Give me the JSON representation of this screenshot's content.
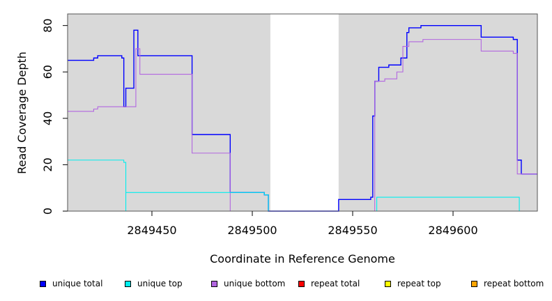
{
  "chart_data": {
    "type": "line",
    "title": "",
    "xlabel": "Coordinate in Reference Genome",
    "ylabel": "Read Coverage Depth",
    "xlim": [
      2849408,
      2849642
    ],
    "ylim": [
      0,
      85
    ],
    "x_ticks": [
      2849450,
      2849500,
      2849550,
      2849600
    ],
    "y_ticks": [
      0,
      20,
      40,
      60,
      80
    ],
    "shaded_regions": [
      [
        2849408,
        2849509
      ],
      [
        2849543,
        2849642
      ]
    ],
    "legend_placement": "bottom",
    "series": [
      {
        "name": "unique total",
        "color": "#0000ff",
        "points": [
          [
            2849408,
            65
          ],
          [
            2849421,
            65
          ],
          [
            2849421,
            66
          ],
          [
            2849423,
            66
          ],
          [
            2849423,
            67
          ],
          [
            2849435,
            67
          ],
          [
            2849435,
            66
          ],
          [
            2849436,
            66
          ],
          [
            2849436,
            45
          ],
          [
            2849437,
            45
          ],
          [
            2849437,
            53
          ],
          [
            2849441,
            53
          ],
          [
            2849441,
            78
          ],
          [
            2849443,
            78
          ],
          [
            2849443,
            67
          ],
          [
            2849470,
            67
          ],
          [
            2849470,
            33
          ],
          [
            2849489,
            33
          ],
          [
            2849489,
            8
          ],
          [
            2849506,
            8
          ],
          [
            2849506,
            7
          ],
          [
            2849508,
            7
          ],
          [
            2849508,
            0
          ],
          [
            2849543,
            0
          ],
          [
            2849543,
            5
          ],
          [
            2849559,
            5
          ],
          [
            2849559,
            6
          ],
          [
            2849560,
            6
          ],
          [
            2849560,
            41
          ],
          [
            2849561,
            41
          ],
          [
            2849561,
            56
          ],
          [
            2849563,
            56
          ],
          [
            2849563,
            62
          ],
          [
            2849568,
            62
          ],
          [
            2849568,
            63
          ],
          [
            2849574,
            63
          ],
          [
            2849574,
            66
          ],
          [
            2849577,
            66
          ],
          [
            2849577,
            77
          ],
          [
            2849578,
            77
          ],
          [
            2849578,
            79
          ],
          [
            2849584,
            79
          ],
          [
            2849584,
            80
          ],
          [
            2849614,
            80
          ],
          [
            2849614,
            75
          ],
          [
            2849630,
            75
          ],
          [
            2849630,
            74
          ],
          [
            2849632,
            74
          ],
          [
            2849632,
            22
          ],
          [
            2849634,
            22
          ],
          [
            2849634,
            16
          ],
          [
            2849642,
            16
          ]
        ]
      },
      {
        "name": "unique top",
        "color": "#00eeee",
        "points": [
          [
            2849408,
            22
          ],
          [
            2849436,
            22
          ],
          [
            2849436,
            21
          ],
          [
            2849437,
            21
          ],
          [
            2849437,
            0
          ],
          [
            2849437,
            8
          ],
          [
            2849506,
            8
          ],
          [
            2849506,
            7
          ],
          [
            2849508,
            7
          ],
          [
            2849508,
            0
          ],
          [
            2849562,
            0
          ],
          [
            2849562,
            6
          ],
          [
            2849633,
            6
          ],
          [
            2849633,
            0
          ],
          [
            2849642,
            0
          ]
        ]
      },
      {
        "name": "unique bottom",
        "color": "#b266e0",
        "points": [
          [
            2849408,
            43
          ],
          [
            2849421,
            43
          ],
          [
            2849421,
            44
          ],
          [
            2849423,
            44
          ],
          [
            2849423,
            45
          ],
          [
            2849442,
            45
          ],
          [
            2849442,
            70
          ],
          [
            2849444,
            70
          ],
          [
            2849444,
            59
          ],
          [
            2849470,
            59
          ],
          [
            2849470,
            25
          ],
          [
            2849489,
            25
          ],
          [
            2849489,
            0
          ],
          [
            2849561,
            0
          ],
          [
            2849561,
            56
          ],
          [
            2849566,
            56
          ],
          [
            2849566,
            57
          ],
          [
            2849572,
            57
          ],
          [
            2849572,
            60
          ],
          [
            2849575,
            60
          ],
          [
            2849575,
            71
          ],
          [
            2849578,
            71
          ],
          [
            2849578,
            73
          ],
          [
            2849585,
            73
          ],
          [
            2849585,
            74
          ],
          [
            2849614,
            74
          ],
          [
            2849614,
            69
          ],
          [
            2849630,
            69
          ],
          [
            2849630,
            68
          ],
          [
            2849632,
            68
          ],
          [
            2849632,
            16
          ],
          [
            2849642,
            16
          ]
        ]
      },
      {
        "name": "repeat total",
        "color": "#ff0000",
        "points": [
          [
            2849408,
            0
          ],
          [
            2849642,
            0
          ]
        ]
      },
      {
        "name": "repeat top",
        "color": "#ffff00",
        "points": [
          [
            2849408,
            0
          ],
          [
            2849642,
            0
          ]
        ]
      },
      {
        "name": "repeat bottom",
        "color": "#ffa500",
        "points": [
          [
            2849408,
            0
          ],
          [
            2849642,
            0
          ]
        ]
      }
    ]
  }
}
